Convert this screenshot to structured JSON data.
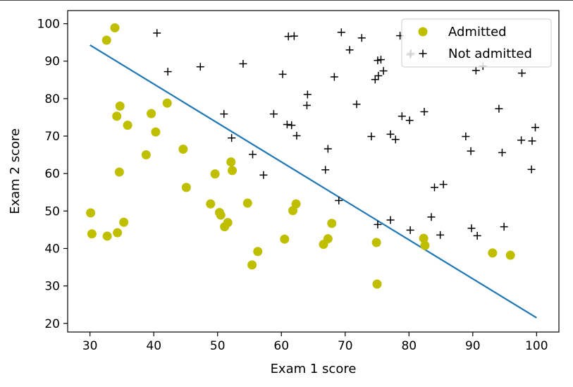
{
  "chart_data": {
    "type": "scatter",
    "title": "",
    "xlabel": "Exam 1 score",
    "ylabel": "Exam 2 score",
    "xlim": [
      26.5,
      103.5
    ],
    "ylim": [
      17.7,
      103.5
    ],
    "xticks": [
      30,
      40,
      50,
      60,
      70,
      80,
      90,
      100
    ],
    "yticks": [
      20,
      30,
      40,
      50,
      60,
      70,
      80,
      90,
      100
    ],
    "grid": false,
    "legend": {
      "position": "top-right"
    },
    "series": [
      {
        "name": "Admitted",
        "marker": "circle",
        "color": "#bfbf00",
        "points": [
          [
            33.9,
            98.9
          ],
          [
            32.6,
            95.6
          ],
          [
            34.7,
            78.0
          ],
          [
            34.2,
            75.3
          ],
          [
            35.9,
            72.9
          ],
          [
            39.6,
            76.0
          ],
          [
            42.1,
            78.8
          ],
          [
            40.3,
            71.1
          ],
          [
            44.6,
            66.5
          ],
          [
            38.8,
            65.0
          ],
          [
            52.1,
            63.1
          ],
          [
            52.3,
            60.8
          ],
          [
            49.6,
            59.9
          ],
          [
            34.6,
            60.4
          ],
          [
            45.1,
            56.3
          ],
          [
            48.9,
            51.9
          ],
          [
            50.3,
            49.6
          ],
          [
            50.5,
            48.9
          ],
          [
            54.7,
            52.1
          ],
          [
            62.3,
            51.9
          ],
          [
            61.8,
            50.1
          ],
          [
            30.1,
            49.5
          ],
          [
            35.3,
            47.0
          ],
          [
            51.6,
            46.9
          ],
          [
            51.1,
            45.8
          ],
          [
            30.3,
            43.9
          ],
          [
            32.7,
            43.3
          ],
          [
            34.3,
            44.2
          ],
          [
            60.5,
            42.5
          ],
          [
            56.3,
            39.2
          ],
          [
            55.4,
            35.6
          ],
          [
            67.9,
            46.7
          ],
          [
            67.3,
            42.6
          ],
          [
            66.6,
            41.1
          ],
          [
            74.9,
            41.6
          ],
          [
            75.0,
            30.5
          ],
          [
            82.3,
            42.7
          ],
          [
            82.5,
            40.8
          ],
          [
            93.1,
            38.8
          ],
          [
            95.9,
            38.2
          ]
        ]
      },
      {
        "name": "Not admitted",
        "marker": "plus",
        "color": "#000000",
        "points": [
          [
            40.5,
            97.5
          ],
          [
            61.1,
            96.6
          ],
          [
            62.0,
            96.7
          ],
          [
            69.4,
            97.7
          ],
          [
            72.6,
            96.2
          ],
          [
            78.6,
            96.8
          ],
          [
            70.7,
            93.0
          ],
          [
            80.2,
            91.7
          ],
          [
            80.3,
            92.1
          ],
          [
            75.1,
            90.2
          ],
          [
            75.6,
            90.4
          ],
          [
            54.0,
            89.3
          ],
          [
            47.3,
            88.5
          ],
          [
            42.2,
            87.2
          ],
          [
            60.2,
            86.5
          ],
          [
            68.3,
            85.8
          ],
          [
            74.7,
            85.1
          ],
          [
            75.2,
            86.1
          ],
          [
            76.0,
            87.4
          ],
          [
            91.6,
            88.7
          ],
          [
            90.5,
            87.5
          ],
          [
            97.7,
            86.8
          ],
          [
            64.1,
            81.1
          ],
          [
            64.0,
            78.2
          ],
          [
            71.8,
            78.5
          ],
          [
            94.1,
            77.3
          ],
          [
            82.4,
            76.5
          ],
          [
            51.0,
            75.9
          ],
          [
            58.8,
            75.9
          ],
          [
            78.9,
            75.3
          ],
          [
            80.1,
            74.2
          ],
          [
            60.9,
            73.1
          ],
          [
            61.6,
            72.9
          ],
          [
            62.4,
            70.1
          ],
          [
            52.2,
            69.5
          ],
          [
            74.1,
            69.9
          ],
          [
            77.1,
            70.5
          ],
          [
            77.9,
            69.1
          ],
          [
            88.9,
            69.9
          ],
          [
            97.6,
            68.9
          ],
          [
            99.3,
            68.7
          ],
          [
            99.8,
            72.3
          ],
          [
            67.3,
            66.6
          ],
          [
            89.7,
            66.0
          ],
          [
            94.6,
            65.6
          ],
          [
            55.5,
            65.1
          ],
          [
            66.9,
            61.0
          ],
          [
            57.2,
            59.6
          ],
          [
            99.2,
            61.1
          ],
          [
            84.0,
            56.3
          ],
          [
            85.4,
            57.1
          ],
          [
            69.0,
            52.8
          ],
          [
            83.5,
            48.4
          ],
          [
            77.1,
            47.6
          ],
          [
            75.1,
            46.4
          ],
          [
            89.8,
            45.4
          ],
          [
            94.9,
            45.8
          ],
          [
            80.2,
            44.9
          ],
          [
            84.9,
            43.6
          ],
          [
            90.7,
            43.4
          ]
        ]
      }
    ],
    "decision_boundary": {
      "name": "",
      "type": "line",
      "color": "#1f77b4",
      "points": [
        [
          30,
          94.3
        ],
        [
          100,
          21.5
        ]
      ]
    }
  }
}
